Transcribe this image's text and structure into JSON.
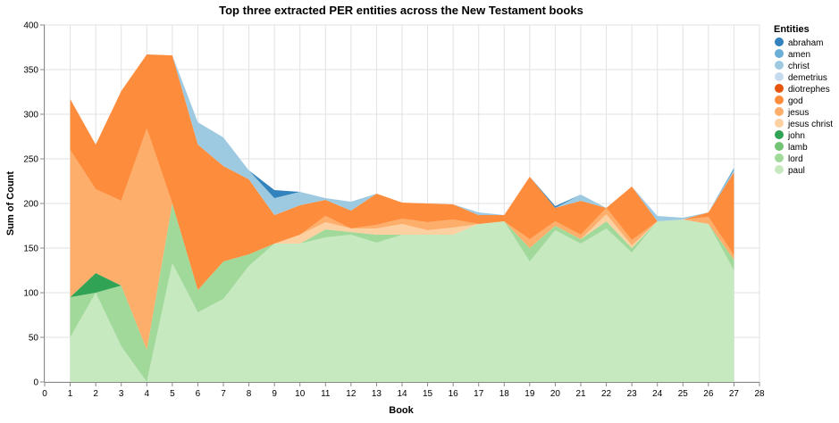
{
  "chart_data": {
    "type": "area",
    "stacked": true,
    "title": "Top three extracted PER entities across the New Testament books",
    "xlabel": "Book",
    "ylabel": "Sum of Count",
    "xlim": [
      0,
      28
    ],
    "ylim": [
      0,
      400
    ],
    "x_ticks": [
      0,
      1,
      2,
      3,
      4,
      5,
      6,
      7,
      8,
      9,
      10,
      11,
      12,
      13,
      14,
      15,
      16,
      17,
      18,
      19,
      20,
      21,
      22,
      23,
      24,
      25,
      26,
      27,
      28
    ],
    "y_ticks": [
      0,
      50,
      100,
      150,
      200,
      250,
      300,
      350,
      400
    ],
    "grid": true,
    "legend_title": "Entities",
    "legend_position": "right",
    "x": [
      1,
      2,
      3,
      4,
      5,
      6,
      7,
      8,
      9,
      10,
      11,
      12,
      13,
      14,
      15,
      16,
      17,
      18,
      19,
      20,
      21,
      22,
      23,
      24,
      25,
      26,
      27
    ],
    "series": [
      {
        "name": "paul",
        "color": "#c7e9c0",
        "values": [
          50,
          100,
          40,
          0,
          133,
          78,
          93,
          130,
          155,
          155,
          162,
          165,
          156,
          165,
          165,
          165,
          177,
          180,
          135,
          170,
          155,
          172,
          145,
          180,
          182,
          177,
          125
        ]
      },
      {
        "name": "lord",
        "color": "#a1d99b",
        "values": [
          45,
          0,
          68,
          36,
          67,
          25,
          42,
          13,
          0,
          0,
          9,
          3,
          9,
          0,
          0,
          0,
          0,
          0,
          15,
          5,
          5,
          8,
          5,
          0,
          0,
          0,
          12
        ]
      },
      {
        "name": "lamb",
        "color": "#74c476",
        "values": [
          0,
          0,
          0,
          0,
          0,
          0,
          0,
          0,
          0,
          0,
          0,
          0,
          0,
          0,
          0,
          0,
          0,
          0,
          0,
          0,
          0,
          0,
          0,
          0,
          0,
          0,
          0
        ]
      },
      {
        "name": "john",
        "color": "#31a354",
        "values": [
          0,
          22,
          0,
          0,
          0,
          0,
          0,
          0,
          0,
          0,
          0,
          0,
          0,
          0,
          0,
          0,
          0,
          0,
          0,
          0,
          0,
          0,
          0,
          0,
          0,
          0,
          0
        ]
      },
      {
        "name": "jesus christ",
        "color": "#fdd0a2",
        "values": [
          0,
          0,
          0,
          0,
          0,
          0,
          0,
          0,
          0,
          10,
          8,
          4,
          7,
          12,
          5,
          8,
          0,
          0,
          0,
          0,
          0,
          8,
          3,
          0,
          0,
          0,
          0
        ]
      },
      {
        "name": "jesus",
        "color": "#fdae6b",
        "values": [
          165,
          94,
          95,
          248,
          0,
          0,
          0,
          0,
          0,
          0,
          7,
          0,
          4,
          6,
          9,
          9,
          0,
          0,
          10,
          5,
          5,
          7,
          6,
          0,
          0,
          8,
          5
        ]
      },
      {
        "name": "god",
        "color": "#fd8d3c",
        "values": [
          57,
          50,
          123,
          83,
          166,
          163,
          107,
          84,
          32,
          33,
          18,
          20,
          35,
          18,
          21,
          17,
          10,
          7,
          70,
          15,
          38,
          0,
          60,
          0,
          0,
          5,
          93
        ]
      },
      {
        "name": "diotrephes",
        "color": "#e6550d",
        "values": [
          0,
          0,
          0,
          0,
          0,
          0,
          0,
          0,
          0,
          0,
          0,
          0,
          0,
          0,
          0,
          0,
          0,
          0,
          0,
          0,
          0,
          0,
          0,
          0,
          0,
          0,
          0
        ]
      },
      {
        "name": "demetrius",
        "color": "#c6dbef",
        "values": [
          0,
          0,
          0,
          0,
          0,
          0,
          0,
          0,
          0,
          0,
          0,
          0,
          0,
          0,
          0,
          0,
          0,
          0,
          0,
          0,
          0,
          0,
          0,
          0,
          0,
          0,
          0
        ]
      },
      {
        "name": "christ",
        "color": "#9ecae1",
        "values": [
          0,
          0,
          0,
          0,
          0,
          25,
          32,
          10,
          19,
          15,
          2,
          10,
          0,
          0,
          0,
          0,
          3,
          0,
          0,
          0,
          7,
          0,
          0,
          6,
          2,
          0,
          2
        ]
      },
      {
        "name": "amen",
        "color": "#6baed6",
        "values": [
          0,
          0,
          0,
          0,
          0,
          0,
          0,
          0,
          0,
          0,
          0,
          0,
          0,
          0,
          0,
          0,
          0,
          0,
          0,
          0,
          0,
          0,
          0,
          0,
          0,
          0,
          3
        ]
      },
      {
        "name": "abraham",
        "color": "#3182bd",
        "values": [
          0,
          0,
          0,
          0,
          0,
          0,
          0,
          0,
          9,
          0,
          0,
          0,
          0,
          0,
          0,
          0,
          0,
          0,
          0,
          2,
          0,
          0,
          0,
          0,
          0,
          0,
          0
        ]
      }
    ],
    "legend_order": [
      "abraham",
      "amen",
      "christ",
      "demetrius",
      "diotrephes",
      "god",
      "jesus",
      "jesus christ",
      "john",
      "lamb",
      "lord",
      "paul"
    ]
  }
}
